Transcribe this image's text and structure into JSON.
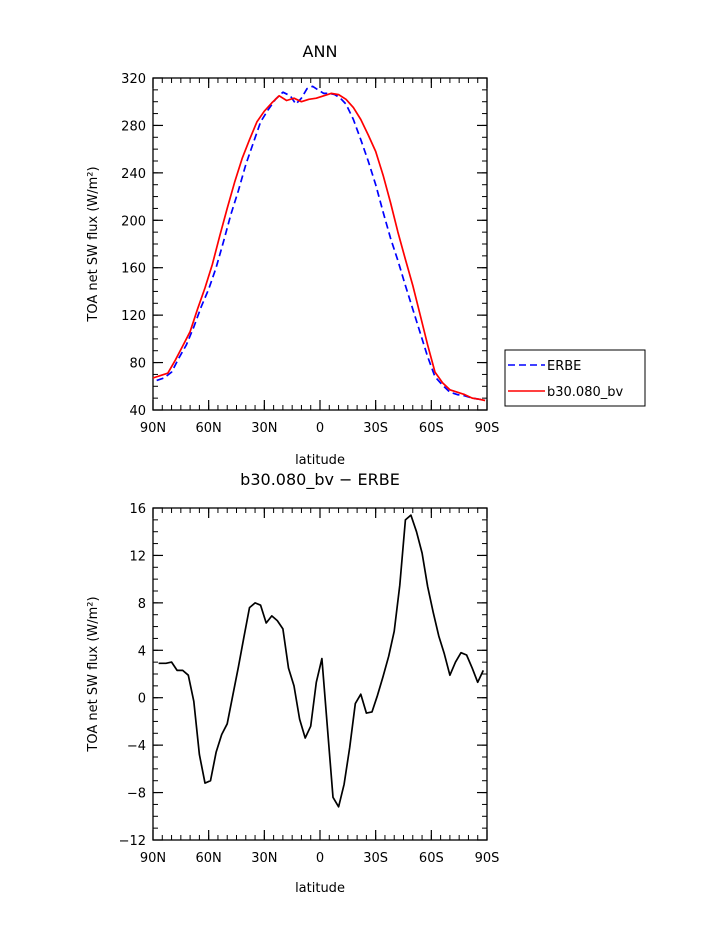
{
  "chart_data": [
    {
      "type": "line",
      "title": "ANN",
      "xlabel": "latitude",
      "ylabel": "TOA net SW flux (W/m²)",
      "xlim": [
        -90,
        90
      ],
      "ylim": [
        40,
        320
      ],
      "x_tick_labels": [
        "90N",
        "60N",
        "30N",
        "0",
        "30S",
        "60S",
        "90S"
      ],
      "y_tick_labels": [
        "40",
        "80",
        "120",
        "160",
        "200",
        "240",
        "280",
        "320"
      ],
      "legend": {
        "placement": "right"
      },
      "series": [
        {
          "name": "ERBE",
          "color": "#0000ff",
          "style": "dashed",
          "x": [
            -88,
            -84,
            -80,
            -76,
            -72,
            -68,
            -64,
            -60,
            -56,
            -52,
            -48,
            -44,
            -40,
            -36,
            -32,
            -28,
            -24,
            -20,
            -16,
            -13,
            -10,
            -7,
            -4,
            -1,
            2,
            5,
            8,
            11,
            14,
            18,
            22,
            26,
            30,
            34,
            38,
            42,
            46,
            50,
            54,
            58,
            62,
            66,
            70,
            74,
            78,
            82,
            86,
            89
          ],
          "y": [
            65,
            67,
            72,
            84,
            95,
            110,
            127,
            142,
            160,
            182,
            205,
            225,
            247,
            265,
            283,
            293,
            302,
            308,
            305,
            298,
            303,
            311,
            313,
            310,
            307,
            307,
            306,
            303,
            298,
            285,
            268,
            250,
            230,
            207,
            185,
            166,
            145,
            125,
            105,
            85,
            68,
            61,
            55,
            53,
            52,
            50,
            49,
            49
          ]
        },
        {
          "name": "b30.080_bv",
          "color": "#ff0000",
          "style": "solid",
          "x": [
            -90,
            -86,
            -82,
            -78,
            -74,
            -70,
            -66,
            -62,
            -58,
            -54,
            -50,
            -46,
            -42,
            -38,
            -34,
            -30,
            -26,
            -22,
            -18,
            -14,
            -10,
            -6,
            -2,
            2,
            6,
            10,
            14,
            18,
            22,
            26,
            30,
            34,
            38,
            42,
            46,
            50,
            54,
            58,
            62,
            66,
            70,
            74,
            78,
            82,
            86,
            89
          ],
          "y": [
            67,
            69,
            71,
            82,
            94,
            106,
            125,
            143,
            163,
            187,
            210,
            232,
            252,
            268,
            283,
            292,
            299,
            305,
            301,
            303,
            300,
            302,
            303,
            305,
            307,
            306,
            302,
            295,
            285,
            272,
            258,
            238,
            215,
            190,
            167,
            145,
            120,
            95,
            72,
            63,
            57,
            55,
            53,
            50,
            49,
            48
          ]
        }
      ]
    },
    {
      "type": "line",
      "title": "b30.080_bv − ERBE",
      "xlabel": "latitude",
      "ylabel": "TOA net SW flux (W/m²)",
      "xlim": [
        -90,
        90
      ],
      "ylim": [
        -12,
        16
      ],
      "x_tick_labels": [
        "90N",
        "60N",
        "30N",
        "0",
        "30S",
        "60S",
        "90S"
      ],
      "y_tick_labels": [
        "−12",
        "−8",
        "−4",
        "0",
        "4",
        "8",
        "12",
        "16"
      ],
      "series": [
        {
          "color": "#000000",
          "style": "solid",
          "x": [
            -87,
            -83,
            -80,
            -77,
            -74,
            -71,
            -68,
            -65,
            -62,
            -59,
            -56,
            -53,
            -50,
            -47,
            -44,
            -41,
            -38,
            -35,
            -32,
            -29,
            -26,
            -23,
            -20,
            -17,
            -14,
            -11,
            -8,
            -5,
            -2,
            1,
            4,
            7,
            10,
            13,
            16,
            19,
            22,
            25,
            28,
            31,
            34,
            37,
            40,
            43,
            46,
            49,
            52,
            55,
            58,
            61,
            64,
            67,
            70,
            73,
            76,
            79,
            82,
            85,
            88
          ],
          "y": [
            2.9,
            2.9,
            3.0,
            2.3,
            2.3,
            1.9,
            -0.3,
            -4.8,
            -7.2,
            -7.0,
            -4.6,
            -3.1,
            -2.2,
            0.2,
            2.6,
            5.1,
            7.6,
            8.0,
            7.8,
            6.3,
            6.9,
            6.5,
            5.8,
            2.5,
            1.0,
            -1.8,
            -3.4,
            -2.4,
            1.3,
            3.3,
            -2.5,
            -8.4,
            -9.2,
            -7.3,
            -4.2,
            -0.5,
            0.3,
            -1.3,
            -1.2,
            0.2,
            1.8,
            3.5,
            5.6,
            9.5,
            15.0,
            15.4,
            14.0,
            12.2,
            9.4,
            7.2,
            5.2,
            3.7,
            1.9,
            3.0,
            3.8,
            3.6,
            2.5,
            1.3,
            2.3
          ]
        }
      ]
    }
  ]
}
